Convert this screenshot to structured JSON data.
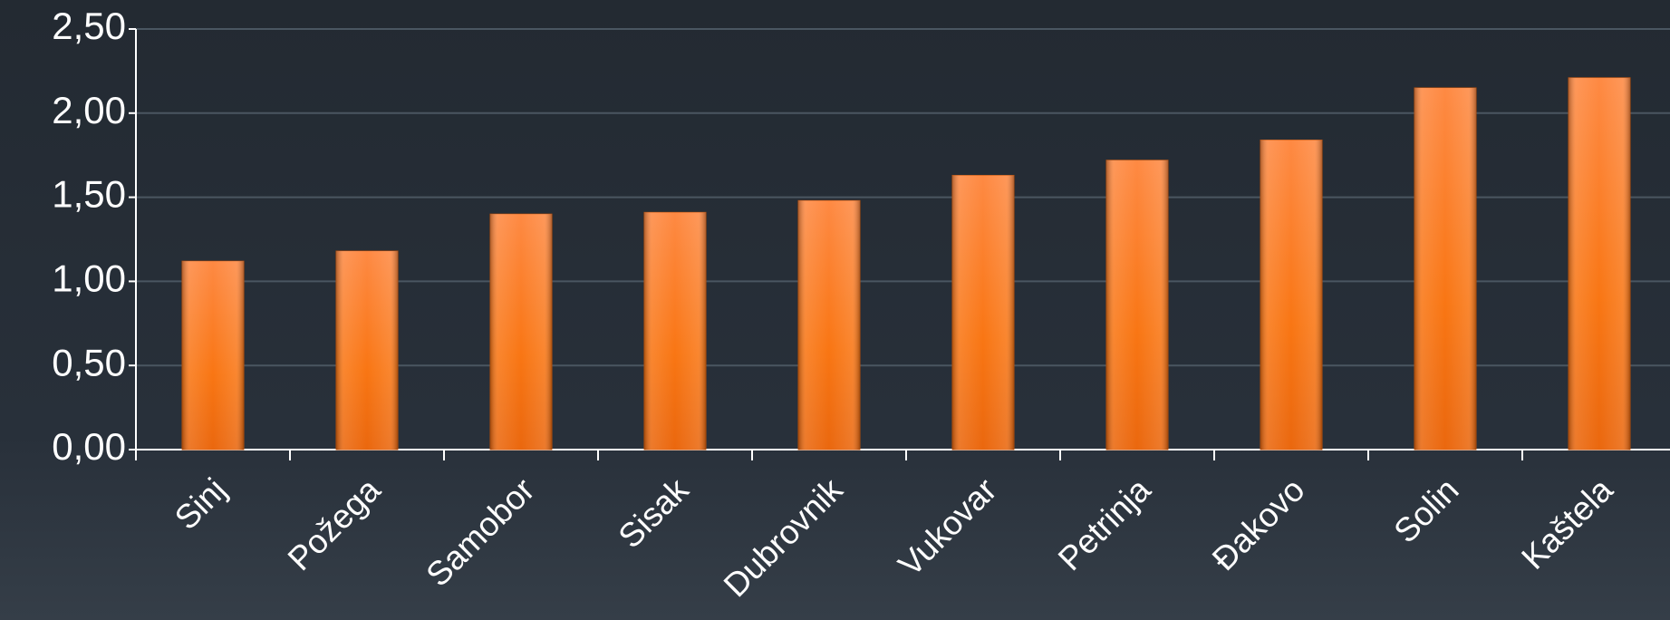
{
  "chart_data": {
    "type": "bar",
    "categories": [
      "Sinj",
      "Požega",
      "Samobor",
      "Sisak",
      "Dubrovnik",
      "Vukovar",
      "Petrinja",
      "Đakovo",
      "Solin",
      "Kaštela"
    ],
    "values": [
      1.12,
      1.18,
      1.4,
      1.41,
      1.48,
      1.63,
      1.72,
      1.84,
      2.15,
      2.21
    ],
    "color": "#f7751a",
    "ylim": [
      0,
      2.5
    ],
    "yticks": [
      {
        "value": 0,
        "label": "0,00"
      },
      {
        "value": 0.5,
        "label": "0,50"
      },
      {
        "value": 1,
        "label": "1,00"
      },
      {
        "value": 1.5,
        "label": "1,50"
      },
      {
        "value": 2,
        "label": "2,00"
      },
      {
        "value": 2.5,
        "label": "2,50"
      }
    ],
    "grid": true
  }
}
